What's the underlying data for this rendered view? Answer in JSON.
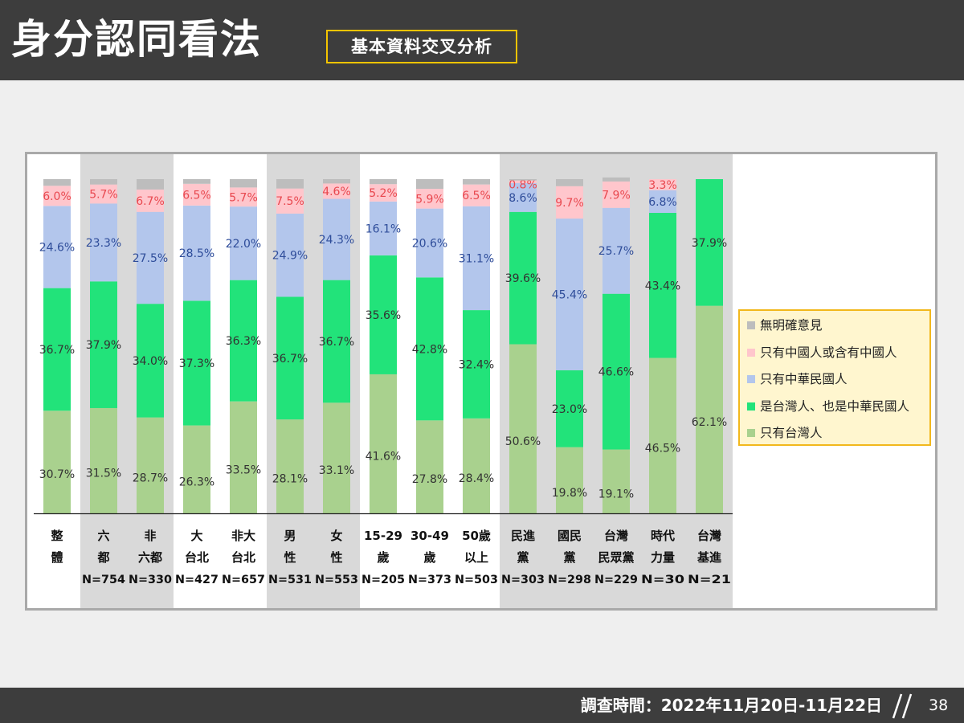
{
  "header": {
    "title": "身分認同看法",
    "subtitle": "基本資料交叉分析"
  },
  "footer": {
    "survey_time": "調查時間：2022年11月20日-11月22日",
    "page_number": "38"
  },
  "legend": {
    "items": [
      {
        "label": "無明確意見",
        "color": "#bdbdbd"
      },
      {
        "label": "只有中國人或含有中國人",
        "color": "#ffc6cc"
      },
      {
        "label": "只有中華民國人",
        "color": "#b3c6ec"
      },
      {
        "label": "是台灣人、也是中華民國人",
        "color": "#22e37a"
      },
      {
        "label": "只有台灣人",
        "color": "#a9d18e"
      }
    ]
  },
  "chart_data": {
    "type": "bar",
    "stacked": true,
    "percent_scale": true,
    "ylim": [
      0,
      100
    ],
    "categories": [
      {
        "lines": [
          "整",
          "體"
        ],
        "n": ""
      },
      {
        "lines": [
          "六",
          "都"
        ],
        "n": "N=754"
      },
      {
        "lines": [
          "非",
          "六都"
        ],
        "n": "N=330"
      },
      {
        "lines": [
          "大",
          "台北"
        ],
        "n": "N=427"
      },
      {
        "lines": [
          "非大",
          "台北"
        ],
        "n": "N=657"
      },
      {
        "lines": [
          "男",
          "性"
        ],
        "n": "N=531"
      },
      {
        "lines": [
          "女",
          "性"
        ],
        "n": "N=553"
      },
      {
        "lines": [
          "15-29",
          "歲"
        ],
        "n": "N=205"
      },
      {
        "lines": [
          "30-49",
          "歲"
        ],
        "n": "N=373"
      },
      {
        "lines": [
          "50歲",
          "以上"
        ],
        "n": "N=503"
      },
      {
        "lines": [
          "民進",
          "黨"
        ],
        "n": "N=303"
      },
      {
        "lines": [
          "國民",
          "黨"
        ],
        "n": "N=298"
      },
      {
        "lines": [
          "台灣",
          "民眾黨"
        ],
        "n": "N=229"
      },
      {
        "lines": [
          "時代",
          "力量"
        ],
        "n": "N=30"
      },
      {
        "lines": [
          "台灣",
          "基進"
        ],
        "n": "N=21"
      }
    ],
    "shaded_groups": [
      [
        1,
        2
      ],
      [
        5,
        6
      ],
      [
        10,
        14
      ]
    ],
    "series": [
      {
        "name": "只有台灣人",
        "color": "#a9d18e",
        "label_color": "#333333",
        "values": [
          30.7,
          31.5,
          28.7,
          26.3,
          33.5,
          28.1,
          33.1,
          41.6,
          27.8,
          28.4,
          50.6,
          19.8,
          19.1,
          46.5,
          62.1
        ],
        "labels": [
          "30.7%",
          "31.5%",
          "28.7%",
          "26.3%",
          "33.5%",
          "28.1%",
          "33.1%",
          "41.6%",
          "27.8%",
          "28.4%",
          "50.6%",
          "19.8%",
          "19.1%",
          "46.5%",
          "62.1%"
        ]
      },
      {
        "name": "是台灣人、也是中華民國人",
        "color": "#22e37a",
        "label_color": "#333333",
        "values": [
          36.7,
          37.9,
          34.0,
          37.3,
          36.3,
          36.7,
          36.7,
          35.6,
          42.8,
          32.4,
          39.6,
          23.0,
          46.6,
          43.4,
          37.9
        ],
        "labels": [
          "36.7%",
          "37.9%",
          "34.0%",
          "37.3%",
          "36.3%",
          "36.7%",
          "36.7%",
          "35.6%",
          "42.8%",
          "32.4%",
          "39.6%",
          "23.0%",
          "46.6%",
          "43.4%",
          "37.9%"
        ]
      },
      {
        "name": "只有中華民國人",
        "color": "#b3c6ec",
        "label_color": "#2f4d9a",
        "values": [
          24.6,
          23.3,
          27.5,
          28.5,
          22.0,
          24.9,
          24.3,
          16.1,
          20.6,
          31.1,
          8.6,
          45.4,
          25.7,
          6.8,
          0
        ],
        "labels": [
          "24.6%",
          "23.3%",
          "27.5%",
          "28.5%",
          "22.0%",
          "24.9%",
          "24.3%",
          "16.1%",
          "20.6%",
          "31.1%",
          "8.6%",
          "45.4%",
          "25.7%",
          "6.8%",
          ""
        ]
      },
      {
        "name": "只有中國人或含有中國人",
        "color": "#ffc6cc",
        "label_color": "#e8484f",
        "values": [
          6.0,
          5.7,
          6.7,
          6.5,
          5.7,
          7.5,
          4.6,
          5.2,
          5.9,
          6.5,
          0.8,
          9.7,
          7.9,
          3.3,
          0
        ],
        "labels": [
          "6.0%",
          "5.7%",
          "6.7%",
          "6.5%",
          "5.7%",
          "7.5%",
          "4.6%",
          "5.2%",
          "5.9%",
          "6.5%",
          "0.8%",
          "9.7%",
          "7.9%",
          "3.3%",
          ""
        ]
      },
      {
        "name": "無明確意見",
        "color": "#bdbdbd",
        "label_color": "#333333",
        "values": [
          2.0,
          1.6,
          3.1,
          1.4,
          2.5,
          2.8,
          1.3,
          1.5,
          2.9,
          1.6,
          0.4,
          2.1,
          1.2,
          0,
          0
        ],
        "labels": [
          "",
          "",
          "",
          "",
          "",
          "",
          "",
          "",
          "",
          "",
          "",
          "",
          "",
          "",
          ""
        ]
      }
    ]
  }
}
